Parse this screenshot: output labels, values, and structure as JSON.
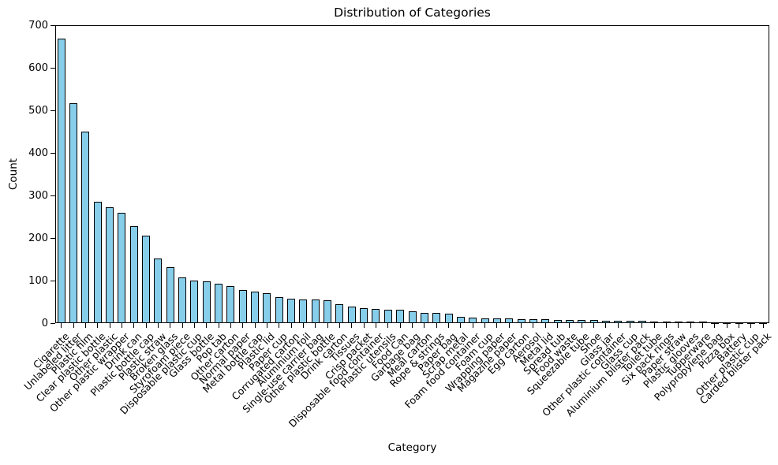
{
  "chart_data": {
    "type": "bar",
    "title": "Distribution of Categories",
    "xlabel": "Category",
    "ylabel": "Count",
    "ylim": [
      0,
      700
    ],
    "yticks": [
      0,
      100,
      200,
      300,
      400,
      500,
      600,
      700
    ],
    "grid": false,
    "legend": "none",
    "bar_color": "#87CEEB",
    "bar_edge_color": "#000000",
    "tick_label_rotation": 45,
    "categories": [
      "Cigarette",
      "Unlabeled litter",
      "Plastic film",
      "Clear plastic bottle",
      "Other plastic",
      "Other plastic wrapper",
      "Drink can",
      "Plastic bottle cap",
      "Plastic straw",
      "Broken glass",
      "Styrofoam piece",
      "Disposable plastic cup",
      "Glass bottle",
      "Pop tab",
      "Other carton",
      "Normal paper",
      "Metal bottle cap",
      "Plastic lid",
      "Paper cup",
      "Corrugated carton",
      "Aluminium foil",
      "Single-use carrier bag",
      "Other plastic bottle",
      "Drink carton",
      "Tissues",
      "Crisp packet",
      "Disposable food container",
      "Plastic utensils",
      "Food Can",
      "Garbage bag",
      "Meal carton",
      "Rope & strings",
      "Paper bag",
      "Scrap metal",
      "Foam food container",
      "Foam cup",
      "Wrapping paper",
      "Magazine paper",
      "Egg carton",
      "Aerosol",
      "Metal lid",
      "Spread tub",
      "Food waste",
      "Squeezable tube",
      "Shoe",
      "Glass jar",
      "Other plastic container",
      "Glass cup",
      "Aluminium blister pack",
      "Toilet tube",
      "Six pack rings",
      "Paper straw",
      "Plastic glooves",
      "Tupperware",
      "Polypropylene bag",
      "Pizza box",
      "Battery",
      "Other plastic cup",
      "Carded blister pack"
    ],
    "values": [
      668,
      517,
      450,
      285,
      272,
      260,
      227,
      205,
      152,
      131,
      107,
      100,
      99,
      93,
      87,
      77,
      75,
      71,
      62,
      58,
      56,
      55,
      54,
      45,
      39,
      35,
      33,
      32,
      31,
      27,
      25,
      24,
      23,
      14,
      13,
      12,
      11,
      11,
      10,
      9,
      9,
      8,
      8,
      7,
      7,
      6,
      5,
      5,
      5,
      4,
      4,
      4,
      3,
      3,
      2,
      2,
      2,
      1,
      1
    ]
  }
}
